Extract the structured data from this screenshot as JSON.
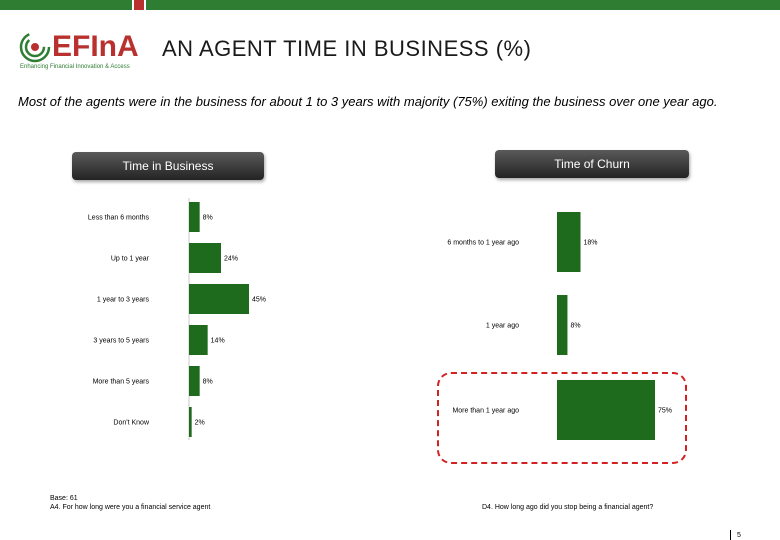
{
  "header": {
    "logo_text": "EFInA",
    "logo_tagline": "Enhancing Financial Innovation & Access",
    "title": "AN AGENT TIME IN BUSINESS (%)",
    "subtitle": "Most of the agents were in the business for about 1 to 3 years with majority (75%) exiting the business over one year ago."
  },
  "colors": {
    "bar": "#1e6b1e",
    "topbar_green": "#2e7d32",
    "topbar_red": "#b8312f",
    "highlight": "#d32020"
  },
  "left_panel": {
    "title": "Time in Business"
  },
  "right_panel": {
    "title": "Time of Churn"
  },
  "chart_data": [
    {
      "type": "bar",
      "orientation": "horizontal",
      "title": "Time in Business",
      "categories": [
        "Less than 6 months",
        "Up to 1 year",
        "1 year to 3 years",
        "3 years to 5 years",
        "More than 5 years",
        "Don't Know"
      ],
      "values": [
        8,
        24,
        45,
        14,
        8,
        2
      ],
      "value_labels": [
        "8%",
        "24%",
        "45%",
        "14%",
        "8%",
        "2%"
      ],
      "xlim": [
        0,
        100
      ],
      "grid": false
    },
    {
      "type": "bar",
      "orientation": "horizontal",
      "title": "Time of Churn",
      "categories": [
        "6 months to 1 year ago",
        "1 year ago",
        "More than 1 year ago"
      ],
      "values": [
        18,
        8,
        75
      ],
      "value_labels": [
        "18%",
        "8%",
        "75%"
      ],
      "xlim": [
        0,
        75
      ],
      "grid": false,
      "highlighted_category": "More than 1 year ago"
    }
  ],
  "footer": {
    "base_line": "Base: 61",
    "question_left": "A4. For how long were you a financial service agent",
    "question_right": "D4. How long ago did you stop being a financial agent?",
    "page_number": "5"
  }
}
